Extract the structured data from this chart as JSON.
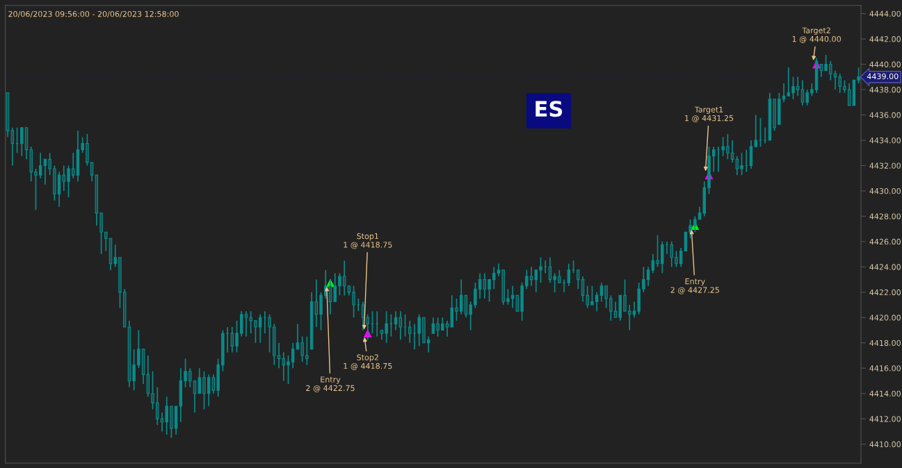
{
  "chart_data": {
    "type": "candlestick",
    "title": "20/06/2023 09:56:00 - 20/06/2023 12:58:00",
    "color": "#0a8b8b",
    "categories": [
      null,
      null,
      null,
      null,
      null,
      null,
      null,
      null,
      null,
      null,
      null,
      null,
      null,
      null,
      null,
      null,
      null,
      null,
      null,
      null,
      null,
      null,
      null,
      null,
      null,
      null,
      null,
      null,
      null,
      null,
      null,
      null,
      null,
      null,
      null,
      null,
      null,
      null,
      null,
      null,
      null,
      null,
      null,
      null,
      null,
      null,
      null,
      null,
      null,
      null,
      null,
      null,
      null,
      null,
      null,
      null,
      null,
      null,
      null,
      null,
      null,
      null,
      null,
      null,
      null,
      null,
      null,
      null,
      null,
      null,
      null,
      null,
      null,
      null,
      null,
      null,
      null,
      null,
      null,
      null,
      null,
      null,
      null,
      null,
      null,
      null,
      null,
      null,
      null,
      null,
      null,
      null,
      null,
      null,
      null,
      null,
      null,
      null,
      null,
      null,
      null,
      null,
      null,
      null,
      null,
      null,
      null,
      null,
      null,
      null,
      null,
      null,
      null,
      null,
      null,
      null,
      null,
      null,
      null,
      null,
      null,
      null,
      null,
      null,
      null,
      null,
      null,
      null,
      null,
      null,
      null,
      null,
      null,
      null,
      null,
      null,
      null,
      null,
      null,
      null,
      null,
      null,
      null,
      null,
      null,
      null,
      null,
      null,
      null,
      null,
      null,
      null,
      null,
      null,
      null,
      null,
      null,
      null,
      null,
      null,
      null,
      null,
      null,
      null,
      null,
      null,
      null,
      null,
      null,
      null,
      null,
      null,
      null,
      null,
      null,
      null,
      null,
      null,
      null,
      null,
      null,
      null,
      null
    ],
    "series": [
      {
        "type": "scatter",
        "marker": "triangle",
        "values": [
          null,
          null,
          null,
          null,
          null,
          null,
          null,
          null,
          null,
          null,
          null,
          null,
          null,
          null,
          null,
          null,
          null,
          null,
          null,
          null,
          null,
          null,
          null,
          null,
          null,
          null,
          null,
          null,
          null,
          null,
          null,
          null,
          null,
          null,
          null,
          null,
          null,
          null,
          null,
          null,
          null,
          null,
          null,
          null,
          null,
          null,
          null,
          null,
          null,
          null,
          null,
          null,
          null,
          null,
          null,
          null,
          null,
          null,
          null,
          null,
          null,
          null,
          null,
          null,
          null,
          null,
          null,
          null,
          null,
          4422.75,
          null,
          null,
          null,
          null,
          null,
          null,
          null,
          4418.75,
          null,
          null,
          null,
          null,
          null,
          null,
          null,
          null,
          null,
          null,
          null,
          null,
          null,
          null,
          null,
          null,
          null,
          null,
          null,
          null,
          null,
          null,
          null,
          null,
          null,
          null,
          null,
          null,
          null,
          null,
          null,
          null,
          null,
          null,
          null,
          null,
          null,
          null,
          null,
          null,
          null,
          null,
          null,
          null,
          null,
          null,
          null,
          null,
          null,
          null,
          null,
          null,
          null,
          null,
          null,
          null,
          null,
          null,
          null,
          null,
          null,
          null,
          null,
          null,
          null,
          null,
          null,
          null,
          null,
          4427.25,
          null,
          null,
          4431.25,
          null,
          null,
          null,
          null,
          null,
          null,
          null,
          null,
          null,
          null,
          null,
          null,
          null,
          null,
          null,
          null,
          null,
          null,
          null,
          null,
          null,
          null,
          4440.0,
          null,
          null,
          null,
          null,
          null,
          null,
          null,
          null,
          null
        ],
        "colors": [
          null,
          null,
          null,
          null,
          null,
          null,
          null,
          null,
          null,
          null,
          null,
          null,
          null,
          null,
          null,
          null,
          null,
          null,
          null,
          null,
          null,
          null,
          null,
          null,
          null,
          null,
          null,
          null,
          null,
          null,
          null,
          null,
          null,
          null,
          null,
          null,
          null,
          null,
          null,
          null,
          null,
          null,
          null,
          null,
          null,
          null,
          null,
          null,
          null,
          null,
          null,
          null,
          null,
          null,
          null,
          null,
          null,
          null,
          null,
          null,
          null,
          null,
          null,
          null,
          null,
          null,
          null,
          null,
          null,
          "#00ff00",
          null,
          null,
          null,
          null,
          null,
          null,
          null,
          "#ff00ff",
          null,
          null,
          null,
          null,
          null,
          null,
          null,
          null,
          null,
          null,
          null,
          null,
          null,
          null,
          null,
          null,
          null,
          null,
          null,
          null,
          null,
          null,
          null,
          null,
          null,
          null,
          null,
          null,
          null,
          null,
          null,
          null,
          null,
          null,
          null,
          null,
          null,
          null,
          null,
          null,
          null,
          null,
          null,
          null,
          null,
          null,
          null,
          null,
          null,
          null,
          null,
          null,
          null,
          null,
          null,
          null,
          null,
          null,
          null,
          null,
          null,
          null,
          null,
          null,
          null,
          null,
          null,
          null,
          null,
          "#00ff00",
          null,
          null,
          "#ff00ff",
          null,
          null,
          null,
          null,
          null,
          null,
          null,
          null,
          null,
          null,
          null,
          null,
          null,
          null,
          null,
          null,
          null,
          null,
          null,
          null,
          null,
          null,
          "#ff00ff",
          null,
          null,
          null,
          null,
          null,
          null,
          null,
          null,
          null
        ]
      }
    ],
    "ohlc": [
      [
        4437.75,
        4437.75,
        4434.25,
        4434.75
      ],
      [
        4434.75,
        4435,
        4432,
        4433.75
      ],
      [
        4433.75,
        4435,
        4433,
        4433.75
      ],
      [
        4433.75,
        4435,
        4432.75,
        4435
      ],
      [
        4435,
        4435,
        4432.5,
        4433.25
      ],
      [
        4433.25,
        4433.5,
        4430.75,
        4431.5
      ],
      [
        4431.5,
        4431.75,
        4428.5,
        4431.25
      ],
      [
        4431.25,
        4433,
        4431,
        4432
      ],
      [
        4432,
        4432.5,
        4430.5,
        4432.5
      ],
      [
        4432.5,
        4433,
        4431.25,
        4431.75
      ],
      [
        4431.75,
        4432,
        4429.25,
        4429.75
      ],
      [
        4429.75,
        4431.5,
        4428.75,
        4431.25
      ],
      [
        4431.25,
        4432,
        4430,
        4430.75
      ],
      [
        4430.75,
        4432,
        4429.5,
        4431.75
      ],
      [
        4431.75,
        4433,
        4431,
        4431.25
      ],
      [
        4431.25,
        4434.75,
        4430.75,
        4433.25
      ],
      [
        4433.25,
        4434.25,
        4433,
        4433.75
      ],
      [
        4433.75,
        4434.5,
        4432,
        4432.25
      ],
      [
        4432.25,
        4432.25,
        4430.75,
        4431.25
      ],
      [
        4431.25,
        4431.25,
        4427.25,
        4428.25
      ],
      [
        4428.25,
        4428.25,
        4425,
        4426.75
      ],
      [
        4426.75,
        4426.75,
        4425.25,
        4426.25
      ],
      [
        4426.25,
        4426.25,
        4423.75,
        4424.25
      ],
      [
        4424.25,
        4425.75,
        4424,
        4424.75
      ],
      [
        4424.75,
        4424.75,
        4420.75,
        4422
      ],
      [
        4422,
        4422.25,
        4419.25,
        4419.25
      ],
      [
        4419.25,
        4419.75,
        4414.5,
        4415
      ],
      [
        4415,
        4417.5,
        4414.25,
        4416.25
      ],
      [
        4416.25,
        4419,
        4416,
        4417.5
      ],
      [
        4417.5,
        4417.5,
        4414.75,
        4415.5
      ],
      [
        4415.5,
        4417,
        4413.75,
        4414
      ],
      [
        4414,
        4415.75,
        4412.75,
        4413.25
      ],
      [
        4413.25,
        4414.5,
        4411.5,
        4412
      ],
      [
        4412,
        4412.5,
        4411,
        4411.75
      ],
      [
        4411.75,
        4413.75,
        4410.75,
        4413
      ],
      [
        4413,
        4413,
        4410.5,
        4411.25
      ],
      [
        4411.25,
        4413,
        4410.75,
        4413
      ],
      [
        4413,
        4416,
        4411.75,
        4415
      ],
      [
        4415,
        4416.75,
        4414.5,
        4415.75
      ],
      [
        4415.75,
        4416,
        4414.5,
        4415
      ],
      [
        4415,
        4415,
        4412.5,
        4414
      ],
      [
        4414,
        4416,
        4414,
        4415.25
      ],
      [
        4415.25,
        4415.75,
        4412.75,
        4414
      ],
      [
        4414,
        4415.5,
        4413,
        4415.25
      ],
      [
        4415.25,
        4415.5,
        4414,
        4414.25
      ],
      [
        4414.25,
        4416.75,
        4413.75,
        4416.25
      ],
      [
        4416.25,
        4419,
        4415.75,
        4418.75
      ],
      [
        4418.75,
        4419.25,
        4417.25,
        4418.75
      ],
      [
        4418.75,
        4419.25,
        4417.25,
        4417.75
      ],
      [
        4417.75,
        4419.75,
        4417.25,
        4418.75
      ],
      [
        4418.75,
        4420.5,
        4418.5,
        4420.25
      ],
      [
        4420.25,
        4420.5,
        4418.5,
        4420
      ],
      [
        4420,
        4420.5,
        4418.75,
        4419.75
      ],
      [
        4419.75,
        4419.75,
        4418,
        4419.25
      ],
      [
        4419.25,
        4420.25,
        4418,
        4420
      ],
      [
        4420,
        4420.5,
        4418.75,
        4420
      ],
      [
        4420,
        4420.25,
        4417.25,
        4419.25
      ],
      [
        4419.25,
        4419.5,
        4416.25,
        4417
      ],
      [
        4417,
        4418,
        4416,
        4416.75
      ],
      [
        4416.75,
        4417.25,
        4415,
        4416.25
      ],
      [
        4416.25,
        4417,
        4414.75,
        4416.5
      ],
      [
        4416.5,
        4418,
        4416,
        4417.5
      ],
      [
        4417.5,
        4419.5,
        4417.5,
        4418
      ],
      [
        4418,
        4418.5,
        4416.5,
        4417
      ],
      [
        4417,
        4418.5,
        4416.25,
        4416.75
      ],
      [
        4417.5,
        4422,
        4417.5,
        4421.25
      ],
      [
        4421.25,
        4423,
        4419.25,
        4420.25
      ],
      [
        4420.25,
        4422,
        4419,
        4421.75
      ],
      [
        4421.75,
        4423.75,
        4421.5,
        4422.5
      ],
      [
        4422.5,
        4423,
        4420.25,
        4421.25
      ],
      [
        4421.25,
        4423.5,
        4421.25,
        4422.5
      ],
      [
        4422.5,
        4423.5,
        4421.75,
        4423.25
      ],
      [
        4423.25,
        4424.5,
        4421.75,
        4422.5
      ],
      [
        4422.5,
        4422.5,
        4421.75,
        4422
      ],
      [
        4422,
        4422.5,
        4420,
        4421
      ],
      [
        4421,
        4421.5,
        4420.5,
        4421
      ],
      [
        4421,
        4421.25,
        4419,
        4420
      ],
      [
        4420,
        4420.25,
        4418.25,
        4419.5
      ],
      [
        4419.5,
        4420.5,
        4418.75,
        4419.5
      ],
      [
        4419.5,
        4420.5,
        4418.5,
        4419.5
      ],
      [
        4419,
        4419,
        4418.25,
        4418.75
      ],
      [
        4418.75,
        4420.5,
        4418,
        4419.5
      ],
      [
        4419.5,
        4420.25,
        4418.5,
        4419.5
      ],
      [
        4419.5,
        4420.5,
        4419,
        4420
      ],
      [
        4420,
        4420.5,
        4418.25,
        4419.25
      ],
      [
        4419.25,
        4420.25,
        4418.5,
        4419.25
      ],
      [
        4419.25,
        4419.75,
        4418,
        4418.75
      ],
      [
        4418.75,
        4419.5,
        4417.5,
        4418.75
      ],
      [
        4418.75,
        4420.25,
        4417.75,
        4420
      ],
      [
        4420,
        4420,
        4418,
        4418
      ],
      [
        4418,
        4418.5,
        4417.25,
        4418.25
      ],
      [
        4418.75,
        4420,
        4418.75,
        4419.5
      ],
      [
        4419.5,
        4420,
        4418.5,
        4419
      ],
      [
        4419,
        4420,
        4419,
        4419.5
      ],
      [
        4419.5,
        4419.75,
        4418.5,
        4419.25
      ],
      [
        4419.25,
        4421.75,
        4419.25,
        4420.75
      ],
      [
        4420.75,
        4421.5,
        4419.75,
        4420.5
      ],
      [
        4420.5,
        4423,
        4420.25,
        4421.75
      ],
      [
        4421.75,
        4421.75,
        4420,
        4420.25
      ],
      [
        4420.25,
        4421.25,
        4419,
        4421
      ],
      [
        4421,
        4422.75,
        4420.75,
        4422.25
      ],
      [
        4422.25,
        4423.5,
        4421.5,
        4423
      ],
      [
        4423,
        4423.5,
        4421.5,
        4422.25
      ],
      [
        4422.25,
        4423,
        4421.25,
        4423
      ],
      [
        4423,
        4424,
        4422.25,
        4423.5
      ],
      [
        4423.5,
        4424.25,
        4423.25,
        4423.75
      ],
      [
        4423.75,
        4423.75,
        4421,
        4421.25
      ],
      [
        4421.25,
        4422.25,
        4421,
        4421.5
      ],
      [
        4421.5,
        4422.5,
        4420.75,
        4421.75
      ],
      [
        4421.75,
        4421.75,
        4420.5,
        4420.5
      ],
      [
        4420.5,
        4422.75,
        4419.75,
        4422.5
      ],
      [
        4422.5,
        4423.75,
        4422.25,
        4423.25
      ],
      [
        4423.25,
        4424,
        4422.5,
        4423
      ],
      [
        4423,
        4423.75,
        4422,
        4423.75
      ],
      [
        4423.75,
        4424.75,
        4422.75,
        4424
      ],
      [
        4424,
        4424.5,
        4423.5,
        4424
      ],
      [
        4424,
        4424.75,
        4422.75,
        4423
      ],
      [
        4423,
        4423.5,
        4422,
        4423.25
      ],
      [
        4423.25,
        4423.75,
        4422.75,
        4422.75
      ],
      [
        4422.75,
        4423,
        4422,
        4422.75
      ],
      [
        4422.75,
        4424.25,
        4422.5,
        4423.75
      ],
      [
        4423.75,
        4424.5,
        4423.5,
        4423.75
      ],
      [
        4423.75,
        4423.75,
        4422.25,
        4423
      ],
      [
        4423,
        4423.25,
        4421.25,
        4421.75
      ],
      [
        4421.75,
        4422.5,
        4420.75,
        4421
      ],
      [
        4421,
        4422.5,
        4421,
        4421.25
      ],
      [
        4421.25,
        4422,
        4420.5,
        4421.75
      ],
      [
        4421.75,
        4422.75,
        4421.25,
        4422.5
      ],
      [
        4422.5,
        4422.5,
        4420.75,
        4421.5
      ],
      [
        4421.5,
        4421.75,
        4419.75,
        4420.5
      ],
      [
        4420.5,
        4421.25,
        4420,
        4420
      ],
      [
        4420,
        4421.75,
        4419.75,
        4421.75
      ],
      [
        4421.75,
        4423,
        4420.5,
        4420.5
      ],
      [
        4420.5,
        4421,
        4419,
        4420.25
      ],
      [
        4420.25,
        4421.25,
        4420,
        4420.5
      ],
      [
        4420.5,
        4422.75,
        4420.25,
        4422.25
      ],
      [
        4422.25,
        4424,
        4422,
        4423
      ],
      [
        4423,
        4424,
        4422.5,
        4423.75
      ],
      [
        4423.75,
        4425,
        4423.5,
        4424.5
      ],
      [
        4424.5,
        4426.5,
        4424,
        4424.25
      ],
      [
        4424.25,
        4426,
        4423.5,
        4425.75
      ],
      [
        4425.75,
        4426,
        4425,
        4425.75
      ],
      [
        4425.75,
        4426,
        4424,
        4424.75
      ],
      [
        4424.75,
        4425.25,
        4424,
        4424.25
      ],
      [
        4424.25,
        4425.5,
        4424,
        4425.25
      ],
      [
        4425.25,
        4426.75,
        4425.25,
        4426.75
      ],
      [
        4426.75,
        4427.75,
        4426.25,
        4427.25
      ],
      [
        4427.25,
        4428,
        4426.75,
        4427.75
      ],
      [
        4427.75,
        4428.75,
        4427.75,
        4428.25
      ],
      [
        4428.25,
        4430.75,
        4428,
        4430.25
      ],
      [
        4430.25,
        4433.5,
        4429.75,
        4432.75
      ],
      [
        4432.75,
        4433.5,
        4431.5,
        4433.25
      ],
      [
        4433.25,
        4433.5,
        4431.5,
        4433.25
      ],
      [
        4433.25,
        4434.25,
        4432.75,
        4433.5
      ],
      [
        4433.5,
        4434.5,
        4432.5,
        4433
      ],
      [
        4433,
        4434,
        4432.25,
        4432.5
      ],
      [
        4432.5,
        4432.75,
        4431.25,
        4431.75
      ],
      [
        4431.75,
        4433,
        4431.25,
        4432
      ],
      [
        4432,
        4433.25,
        4431.5,
        4432
      ],
      [
        4432,
        4434,
        4431.75,
        4433.5
      ],
      [
        4433.5,
        4436,
        4433.5,
        4434
      ],
      [
        4434,
        4435.75,
        4433.5,
        4434
      ],
      [
        4434,
        4435,
        4433.75,
        4434
      ],
      [
        4434,
        4437.75,
        4434,
        4437.25
      ],
      [
        4437.25,
        4437.25,
        4434.75,
        4435
      ],
      [
        4435.25,
        4437.75,
        4435.25,
        4437.25
      ],
      [
        4437.25,
        4438.5,
        4437,
        4437.5
      ],
      [
        4437.5,
        4439.75,
        4437.5,
        4437.75
      ],
      [
        4437.75,
        4439,
        4437.25,
        4438.25
      ],
      [
        4438.25,
        4439,
        4437.5,
        4438
      ],
      [
        4438,
        4438.75,
        4436.75,
        4437
      ],
      [
        4437,
        4438,
        4436.75,
        4437.75
      ],
      [
        4437.75,
        4438.5,
        4437.5,
        4438
      ],
      [
        4438,
        4440.5,
        4437.75,
        4440.25
      ],
      [
        4440,
        4440,
        4439,
        4439.5
      ],
      [
        4439.5,
        4440.75,
        4439.5,
        4440
      ],
      [
        4440,
        4440.25,
        4438.75,
        4439.25
      ],
      [
        4439.25,
        4439.5,
        4438,
        4439
      ],
      [
        4439,
        4439.25,
        4437.75,
        4438.25
      ],
      [
        4438.25,
        4438.75,
        4437.75,
        4438
      ],
      [
        4438,
        4438.5,
        4436.75,
        4436.75
      ],
      [
        4436.75,
        4438.75,
        4436.75,
        4438.75
      ],
      [
        4438.75,
        4439.75,
        4438.5,
        4439
      ]
    ],
    "annotations": [
      {
        "text": "Entry\n2 @ 4422.75",
        "y": 4422.75
      },
      {
        "text": "Stop1\n1 @ 4418.75",
        "y": 4418.75
      },
      {
        "text": "Stop2\n1 @ 4418.75",
        "y": 4418.75
      },
      {
        "text": "Entry\n2 @ 4427.25",
        "y": 4427.25
      },
      {
        "text": "Target1\n1 @ 4431.25",
        "y": 4431.25
      },
      {
        "text": "Target2\n1 @ 4440.00",
        "y": 4440.0
      },
      "ES"
    ],
    "ref_lines": [
      {
        "axis": "y",
        "value": 4439.0,
        "label": "4439.00",
        "color": "#1c1c70"
      }
    ],
    "ylim": [
      4408.5,
      4444.65
    ],
    "yticks": [
      {
        "value": 4410,
        "label": "4410.00"
      },
      {
        "value": 4412,
        "label": "4412.00"
      },
      {
        "value": 4414,
        "label": "4414.00"
      },
      {
        "value": 4416,
        "label": "4416.00"
      },
      {
        "value": 4418,
        "label": "4418.00"
      },
      {
        "value": 4420,
        "label": "4420.00"
      },
      {
        "value": 4422,
        "label": "4422.00"
      },
      {
        "value": 4424,
        "label": "4424.00"
      },
      {
        "value": 4426,
        "label": "4426.00"
      },
      {
        "value": 4428,
        "label": "4428.00"
      },
      {
        "value": 4430,
        "label": "4430.00"
      },
      {
        "value": 4432,
        "label": "4432.00"
      },
      {
        "value": 4434,
        "label": "4434.00"
      },
      {
        "value": 4436,
        "label": "4436.00"
      },
      {
        "value": 4438,
        "label": "4438.00"
      },
      {
        "value": 4440,
        "label": "4440.00"
      },
      {
        "value": 4442,
        "label": "4442.00"
      },
      {
        "value": 4444,
        "label": "4444.00"
      }
    ],
    "tick_labels": "y",
    "grid": false,
    "legend": false
  }
}
